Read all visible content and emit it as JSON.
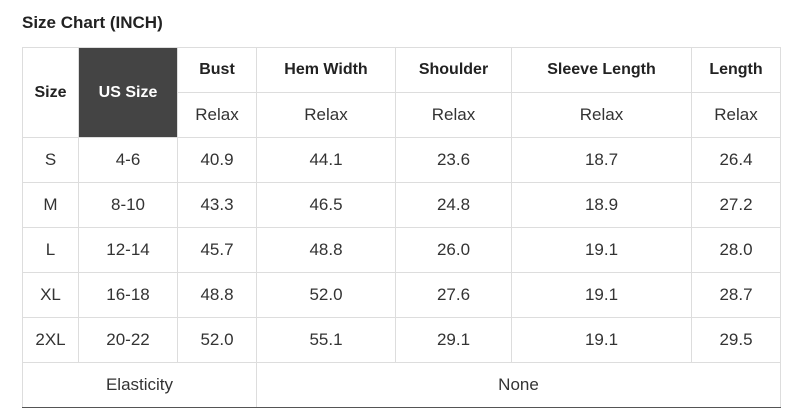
{
  "title": "Size Chart (INCH)",
  "table": {
    "header": [
      "Size",
      "US Size",
      "Bust",
      "Hem Width",
      "Shoulder",
      "Sleeve Length",
      "Length"
    ],
    "subheader": [
      "Relax",
      "Relax",
      "Relax",
      "Relax",
      "Relax"
    ],
    "rows": [
      [
        "S",
        "4-6",
        "40.9",
        "44.1",
        "23.6",
        "18.7",
        "26.4"
      ],
      [
        "M",
        "8-10",
        "43.3",
        "46.5",
        "24.8",
        "18.9",
        "27.2"
      ],
      [
        "L",
        "12-14",
        "45.7",
        "48.8",
        "26.0",
        "19.1",
        "28.0"
      ],
      [
        "XL",
        "16-18",
        "48.8",
        "52.0",
        "27.6",
        "19.1",
        "28.7"
      ],
      [
        "2XL",
        "20-22",
        "52.0",
        "55.1",
        "29.1",
        "19.1",
        "29.5"
      ]
    ],
    "footer": [
      "Elasticity",
      "None"
    ]
  }
}
